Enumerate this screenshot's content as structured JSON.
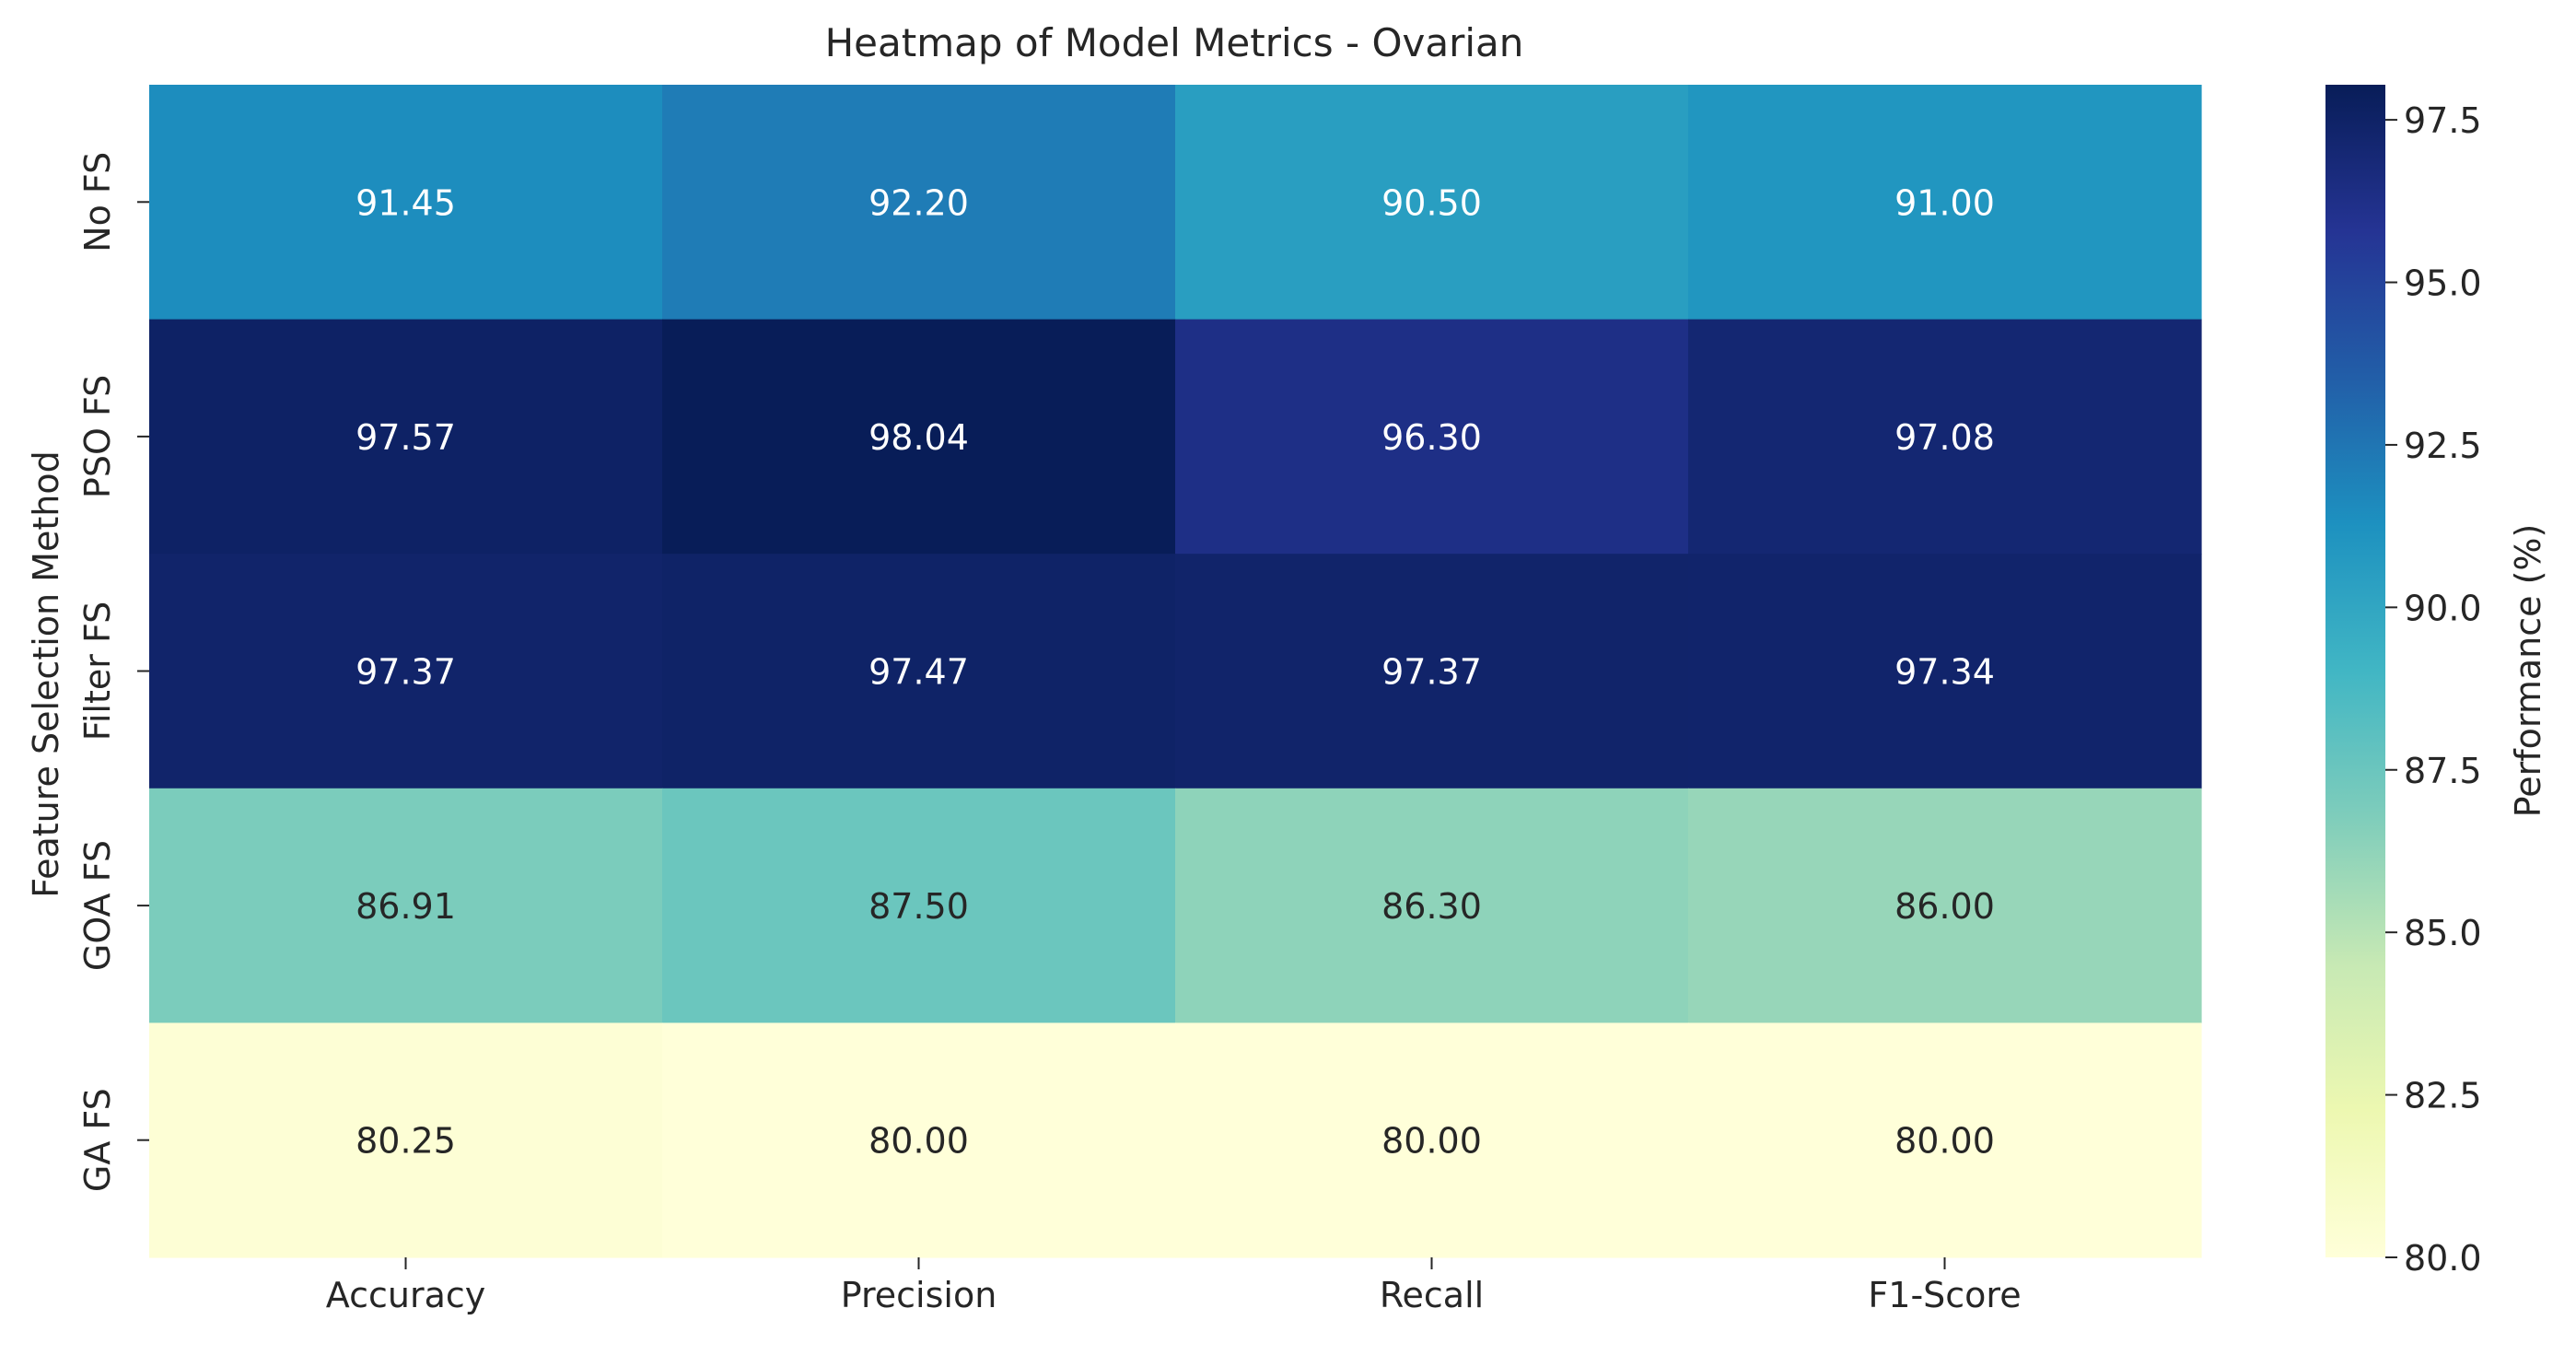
{
  "chart_data": {
    "type": "heatmap",
    "title": "Heatmap of Model Metrics - Ovarian",
    "xlabel": "",
    "ylabel": "Feature Selection Method",
    "columns": [
      "Accuracy",
      "Precision",
      "Recall",
      "F1-Score"
    ],
    "rows": [
      "No FS",
      "PSO FS",
      "Filter FS",
      "GOA FS",
      "GA FS"
    ],
    "values": [
      [
        91.45,
        92.2,
        90.5,
        91.0
      ],
      [
        97.57,
        98.04,
        96.3,
        97.08
      ],
      [
        97.37,
        97.47,
        97.37,
        97.34
      ],
      [
        86.91,
        87.5,
        86.3,
        86.0
      ],
      [
        80.25,
        80.0,
        80.0,
        80.0
      ]
    ],
    "value_labels": [
      [
        "91.45",
        "92.20",
        "90.50",
        "91.00"
      ],
      [
        "97.57",
        "98.04",
        "96.30",
        "97.08"
      ],
      [
        "97.37",
        "97.47",
        "97.37",
        "97.34"
      ],
      [
        "86.91",
        "87.50",
        "86.30",
        "86.00"
      ],
      [
        "80.25",
        "80.00",
        "80.00",
        "80.00"
      ]
    ],
    "colorbar": {
      "label": "Performance (%)",
      "range": [
        80.0,
        98.04
      ],
      "ticks": [
        80.0,
        82.5,
        85.0,
        87.5,
        90.0,
        92.5,
        95.0,
        97.5
      ],
      "tick_labels": [
        "80.0",
        "82.5",
        "85.0",
        "87.5",
        "90.0",
        "92.5",
        "95.0",
        "97.5"
      ],
      "colormap": "YlGnBu",
      "stops": [
        "#ffffd9",
        "#edf8b1",
        "#c7e9b4",
        "#7fcdbb",
        "#41b6c4",
        "#1d91c0",
        "#225ea8",
        "#253494",
        "#081d58"
      ]
    },
    "text_colors": {
      "dark": "#262626",
      "light": "#ffffff"
    }
  }
}
